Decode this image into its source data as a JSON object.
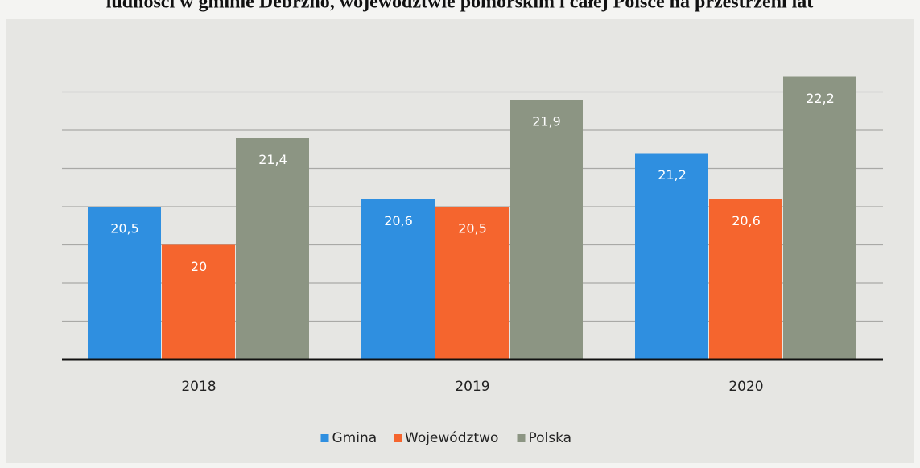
{
  "chart_data": {
    "type": "bar",
    "title": "ludności w gminie Debrzno, województwie pomorskim i całej Polsce na przestrzeni lat",
    "categories": [
      "2018",
      "2019",
      "2020"
    ],
    "series": [
      {
        "name": "Gmina",
        "color": "#2f8fe0",
        "values": [
          20.5,
          20.6,
          21.2
        ],
        "value_labels": [
          "20,5",
          "20,6",
          "21,2"
        ]
      },
      {
        "name": "Województwo",
        "color": "#f5652e",
        "values": [
          20,
          20.5,
          20.6
        ],
        "value_labels": [
          "20",
          "20,5",
          "20,6"
        ]
      },
      {
        "name": "Polska",
        "color": "#8c9583",
        "values": [
          21.4,
          21.9,
          22.2
        ],
        "value_labels": [
          "21,4",
          "21,9",
          "22,2"
        ]
      }
    ],
    "ylim": [
      18.5,
      22.5
    ],
    "yticks": [
      18.5,
      19,
      19.5,
      20,
      20.5,
      21,
      21.5,
      22
    ],
    "grid": true,
    "legend": "bottom"
  }
}
